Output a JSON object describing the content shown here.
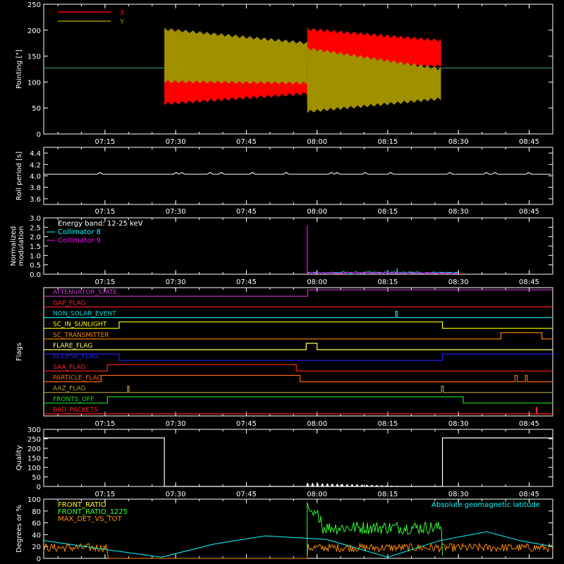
{
  "colors": {
    "background": "#000000",
    "axes": "#ffffff",
    "x": "#ff0000",
    "y": "#a09000",
    "hline": "#3aa080"
  },
  "time_axis": {
    "start_min": 422,
    "end_min": 530,
    "tick_labels": [
      "07:15",
      "07:30",
      "07:45",
      "08:00",
      "08:15",
      "08:30",
      "08:45"
    ],
    "tick_values_min": [
      435,
      450,
      465,
      480,
      495,
      510,
      525
    ]
  },
  "chart_data": [
    {
      "type": "line",
      "ylabel": "Pointing [\"]",
      "ylim": [
        0,
        250
      ],
      "yticks": [
        "0",
        "50",
        "100",
        "150",
        "200",
        "250"
      ],
      "legend": [
        {
          "name": "X",
          "color": "#ff0000"
        },
        {
          "name": "Y",
          "color": "#a09000"
        }
      ],
      "reference_line": 127,
      "series": [
        {
          "name": "X",
          "color": "#ff0000",
          "segments": [
            {
              "t_start": 447.6,
              "t_end": 477.9,
              "low_start": 55,
              "low_end": 75,
              "high_start": 125,
              "high_end": 113
            },
            {
              "t_start": 477.9,
              "t_end": 506.3,
              "low_start": 128,
              "low_end": 128,
              "high_start": 205,
              "high_end": 183
            }
          ]
        },
        {
          "name": "Y",
          "color": "#a09000",
          "segments": [
            {
              "t_start": 447.6,
              "t_end": 477.9,
              "low_start": 98,
              "low_end": 95,
              "high_start": 205,
              "high_end": 178
            },
            {
              "t_start": 477.9,
              "t_end": 506.3,
              "low_start": 40,
              "low_end": 65,
              "high_start": 168,
              "high_end": 128
            }
          ]
        }
      ]
    },
    {
      "type": "line",
      "ylabel": "Roll period [s]",
      "ylim": [
        3.5,
        4.5
      ],
      "yticks": [
        "3.6",
        "3.8",
        "4.0",
        "4.2",
        "4.4"
      ],
      "series": [
        {
          "name": "",
          "color": "#ffffff",
          "value": 4.03
        }
      ]
    },
    {
      "type": "line",
      "ylabel": [
        "Normalized",
        "modulation"
      ],
      "ylim": [
        0,
        3.0
      ],
      "yticks": [
        "0.0",
        "0.5",
        "1.0",
        "1.5",
        "2.0",
        "2.5",
        "3.0"
      ],
      "legend": [
        {
          "name": "Energy band: 12-25 keV",
          "color": "#ffffff"
        },
        {
          "name": "Collimator 8",
          "color": "#00ffff"
        },
        {
          "name": "Collimator 9",
          "color": "#ff00ff"
        }
      ],
      "series": [
        {
          "name": "Collimator 8",
          "color": "#00ffff",
          "t_start": 477.9,
          "t_end": 510.0,
          "level": 0.05,
          "spike_t": 497.0,
          "spike_v": 0.3
        },
        {
          "name": "Collimator 9",
          "color": "#ff00ff",
          "t_start": 477.9,
          "t_end": 510.0,
          "level": 0.03,
          "spike_t": 477.9,
          "spike_v": 2.6
        }
      ]
    },
    {
      "type": "step",
      "ylabel": "Flags",
      "flags": [
        {
          "name": "ATTENUATOR_STATE",
          "color": "#cc33cc",
          "steps": [
            [
              422,
              0
            ],
            [
              478,
              1
            ],
            [
              530,
              1
            ]
          ]
        },
        {
          "name": "GAP_FLAG",
          "color": "#ff2222",
          "steps": [
            [
              422,
              0
            ],
            [
              530,
              0
            ]
          ]
        },
        {
          "name": "NON_SOLAR_EVENT",
          "color": "#00dddd",
          "steps": [
            [
              422,
              0
            ],
            [
              496.7,
              1
            ],
            [
              497.0,
              0
            ],
            [
              530,
              0
            ]
          ]
        },
        {
          "name": "SC_IN_SUNLIGHT",
          "color": "#ffff00",
          "steps": [
            [
              422,
              0
            ],
            [
              438,
              1
            ],
            [
              506.6,
              0
            ],
            [
              530,
              0
            ]
          ]
        },
        {
          "name": "SC_TRANSMITTER",
          "color": "#ff8800",
          "steps": [
            [
              422,
              0
            ],
            [
              519,
              1
            ],
            [
              527.7,
              0
            ],
            [
              530,
              0
            ]
          ]
        },
        {
          "name": "FLARE_FLAG",
          "color": "#ffff66",
          "steps": [
            [
              422,
              0
            ],
            [
              477.7,
              1
            ],
            [
              480,
              0
            ],
            [
              530,
              0
            ]
          ]
        },
        {
          "name": "ECLIPSE_FLAG",
          "color": "#2222ff",
          "steps": [
            [
              422,
              1
            ],
            [
              438,
              0
            ],
            [
              506.6,
              1
            ],
            [
              530,
              1
            ]
          ]
        },
        {
          "name": "SAA_FLAG",
          "color": "#ff2222",
          "steps": [
            [
              422,
              0
            ],
            [
              435.5,
              1
            ],
            [
              475.6,
              0
            ],
            [
              530,
              0
            ]
          ]
        },
        {
          "name": "PARTICLE_FLAG",
          "color": "#ff6600",
          "steps": [
            [
              422,
              0
            ],
            [
              434.2,
              1
            ],
            [
              476.4,
              0
            ],
            [
              522,
              1
            ],
            [
              522.5,
              0
            ],
            [
              524.2,
              1
            ],
            [
              524.6,
              0
            ],
            [
              530,
              0
            ]
          ]
        },
        {
          "name": "AAZ_FLAG",
          "color": "#b0a030",
          "steps": [
            [
              422,
              0
            ],
            [
              439.8,
              1
            ],
            [
              440.1,
              0
            ],
            [
              506.4,
              1
            ],
            [
              506.8,
              0
            ],
            [
              530,
              0
            ]
          ]
        },
        {
          "name": "FRONTS_OFF",
          "color": "#22dd22",
          "steps": [
            [
              422,
              0
            ],
            [
              435.5,
              1
            ],
            [
              511,
              0
            ],
            [
              530,
              0
            ]
          ]
        },
        {
          "name": "BAD_PACKETS",
          "color": "#ff2222",
          "steps": [
            [
              422,
              0
            ],
            [
              526.5,
              1
            ],
            [
              526.7,
              0
            ],
            [
              530,
              0
            ]
          ]
        }
      ]
    },
    {
      "type": "line",
      "ylabel": "Quality",
      "ylim": [
        0,
        300
      ],
      "yticks": [
        "0",
        "50",
        "100",
        "150",
        "200",
        "250",
        "300"
      ],
      "series": [
        {
          "name": "",
          "color": "#ffffff",
          "steps": [
            [
              422,
              255
            ],
            [
              447.6,
              0
            ],
            [
              478,
              0
            ],
            [
              506.6,
              255
            ],
            [
              530,
              255
            ]
          ],
          "bumps_t_start": 478,
          "bumps_t_end": 500,
          "bumps_max": 40
        }
      ]
    },
    {
      "type": "line",
      "ylabel": "Degrees or %",
      "ylim": [
        0,
        100
      ],
      "yticks": [
        "0",
        "20",
        "40",
        "60",
        "80",
        "100"
      ],
      "legend": [
        {
          "name": "FRONT_RATIO",
          "color": "#ffff00"
        },
        {
          "name": "FRONT_RATIO_1225",
          "color": "#33ff33"
        },
        {
          "name": "MAX_DET_VS_TOT",
          "color": "#ff8800"
        }
      ],
      "annotation": {
        "text": "Absolute geomagnetic latitude",
        "color": "#00ffff"
      },
      "series": [
        {
          "name": "Absolute geomagnetic latitude",
          "color": "#00ffff",
          "x": [
            422,
            436,
            447,
            458,
            469,
            482,
            495,
            506,
            516,
            523,
            530
          ],
          "y": [
            30,
            14,
            2,
            24,
            38,
            32,
            2,
            30,
            45,
            30,
            20
          ]
        },
        {
          "name": "FRONT_RATIO_1225",
          "color": "#33ff33",
          "t_start": 477.9,
          "t_end": 506.6,
          "level": 52
        },
        {
          "name": "MAX_DET_VS_TOT",
          "color": "#ff8800",
          "level": 18
        }
      ]
    }
  ]
}
